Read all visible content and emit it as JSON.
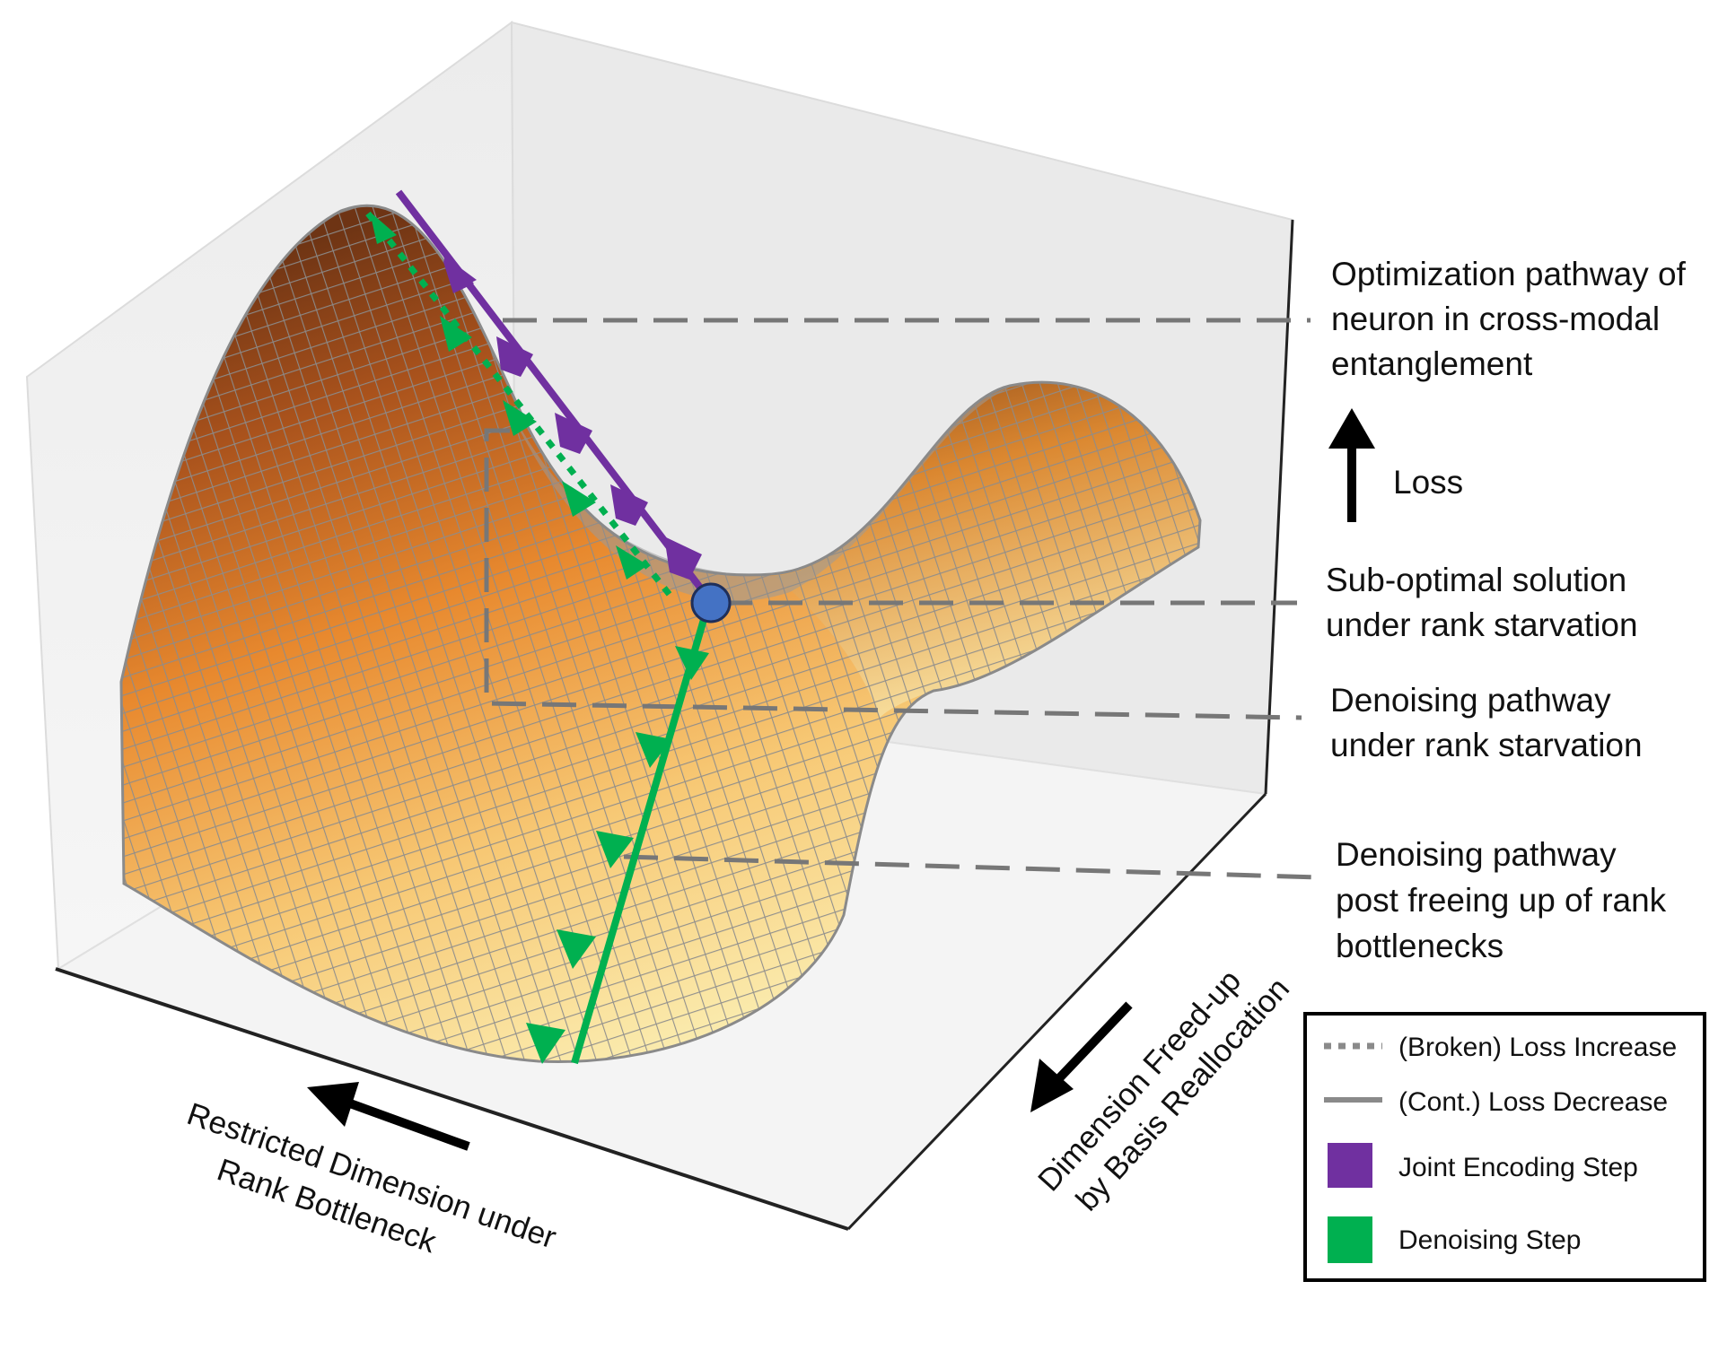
{
  "annotations": {
    "optimization_pathway": [
      "Optimization pathway of",
      "neuron in cross-modal",
      "entanglement"
    ],
    "loss": "Loss",
    "sub_optimal": [
      "Sub-optimal solution",
      "under rank starvation"
    ],
    "denoising_starvation": [
      "Denoising pathway",
      "under rank starvation"
    ],
    "denoising_freed": [
      "Denoising pathway",
      "post freeing up of rank",
      "bottlenecks"
    ]
  },
  "axes": {
    "restricted": [
      "Restricted Dimension under",
      "Rank Bottleneck"
    ],
    "freed": [
      "Dimension Freed-up",
      "by Basis Reallocation"
    ]
  },
  "legend": {
    "items": [
      {
        "label": "(Broken) Loss Increase",
        "kind": "dotted",
        "color": "#8a8a8a"
      },
      {
        "label": "(Cont.) Loss Decrease",
        "kind": "solid",
        "color": "#8a8a8a"
      },
      {
        "label": "Joint Encoding Step",
        "kind": "swatch",
        "color": "#7030a0"
      },
      {
        "label": "Denoising Step",
        "kind": "swatch",
        "color": "#00b050"
      }
    ]
  },
  "colors": {
    "joint_encoding": "#7030a0",
    "denoising": "#00b050",
    "solution_point": "#4472c4",
    "surface_dark": "#6e3414",
    "surface_mid": "#e8892e",
    "surface_light": "#fbefb4",
    "grid": "#8c8c8c",
    "leader_line": "#777777"
  }
}
